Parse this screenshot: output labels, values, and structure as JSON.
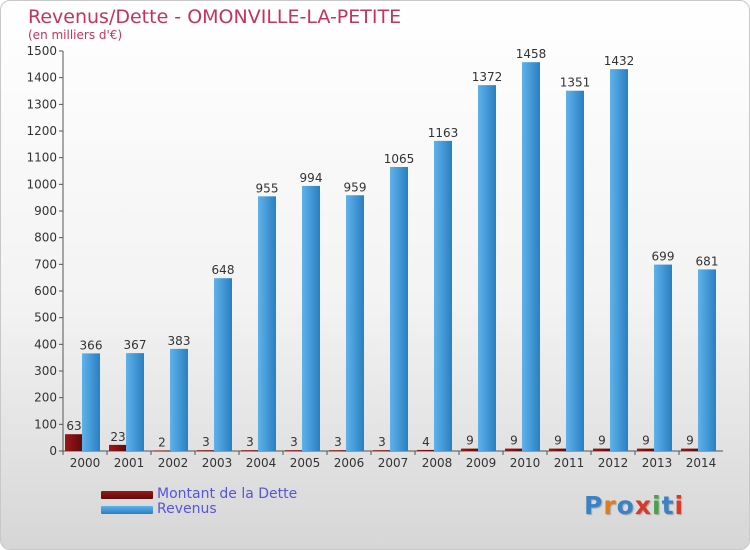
{
  "header": {
    "title": "Revenus/Dette - OMONVILLE-LA-PETITE",
    "subtitle": "(en milliers d'€)"
  },
  "logo": {
    "text": "Proxiti",
    "colors": [
      "#3b82c4",
      "#e07a1f",
      "#3b82c4",
      "#d9392b",
      "#49a14b",
      "#3b82c4",
      "#d9392b"
    ]
  },
  "chart_data": {
    "type": "bar",
    "title": "Revenus/Dette - OMONVILLE-LA-PETITE",
    "subtitle": "(en milliers d'€)",
    "xlabel": "",
    "ylabel": "",
    "ylim": [
      0,
      1500
    ],
    "yticks": [
      0,
      100,
      200,
      300,
      400,
      500,
      600,
      700,
      800,
      900,
      1000,
      1100,
      1200,
      1300,
      1400,
      1500
    ],
    "grid": false,
    "legend_position": "bottom-left",
    "categories": [
      "2000",
      "2001",
      "2002",
      "2003",
      "2004",
      "2005",
      "2006",
      "2007",
      "2008",
      "2009",
      "2010",
      "2011",
      "2012",
      "2013",
      "2014"
    ],
    "series": [
      {
        "name": "Montant de la Dette",
        "color": "#7a0e0e",
        "values": [
          63,
          23,
          2,
          3,
          3,
          3,
          3,
          3,
          4,
          9,
          9,
          9,
          9,
          9,
          9
        ]
      },
      {
        "name": "Revenus",
        "color": "#3a98dc",
        "values": [
          366,
          367,
          383,
          648,
          955,
          994,
          959,
          1065,
          1163,
          1372,
          1458,
          1351,
          1432,
          699,
          681
        ]
      }
    ]
  }
}
